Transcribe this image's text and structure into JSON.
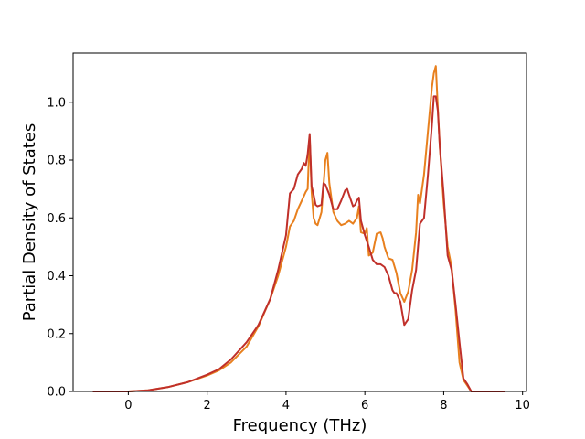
{
  "chart_data": {
    "type": "line",
    "xlabel": "Frequency (THz)",
    "ylabel": "Partial Density of States",
    "xlim": [
      -1.4,
      10.1
    ],
    "ylim": [
      0.0,
      1.17
    ],
    "xticks": [
      0,
      2,
      4,
      6,
      8,
      10
    ],
    "yticks": [
      0.0,
      0.2,
      0.4,
      0.6,
      0.8,
      1.0
    ],
    "grid": false,
    "legend": "none",
    "series": [
      {
        "color": "#e8801e",
        "x": [
          -0.9,
          0,
          0.5,
          1,
          1.5,
          2,
          2.3,
          2.6,
          3,
          3.3,
          3.6,
          3.8,
          4.0,
          4.1,
          4.2,
          4.3,
          4.4,
          4.5,
          4.55,
          4.6,
          4.65,
          4.7,
          4.75,
          4.8,
          4.9,
          5.0,
          5.05,
          5.1,
          5.2,
          5.3,
          5.4,
          5.5,
          5.6,
          5.7,
          5.8,
          5.85,
          5.9,
          6.0,
          6.05,
          6.1,
          6.2,
          6.3,
          6.4,
          6.45,
          6.5,
          6.6,
          6.7,
          6.8,
          6.9,
          7.0,
          7.1,
          7.2,
          7.3,
          7.35,
          7.4,
          7.45,
          7.5,
          7.6,
          7.7,
          7.75,
          7.8,
          7.85,
          7.9,
          8.0,
          8.1,
          8.2,
          8.3,
          8.4,
          8.5,
          8.6,
          8.7,
          9.0,
          9.55
        ],
        "y": [
          0.0,
          0.0,
          0.004,
          0.015,
          0.032,
          0.055,
          0.073,
          0.1,
          0.155,
          0.225,
          0.32,
          0.4,
          0.5,
          0.57,
          0.59,
          0.63,
          0.66,
          0.69,
          0.7,
          0.88,
          0.69,
          0.6,
          0.58,
          0.575,
          0.62,
          0.8,
          0.825,
          0.72,
          0.62,
          0.59,
          0.575,
          0.58,
          0.59,
          0.58,
          0.6,
          0.64,
          0.55,
          0.545,
          0.565,
          0.47,
          0.48,
          0.545,
          0.55,
          0.53,
          0.5,
          0.46,
          0.455,
          0.41,
          0.34,
          0.31,
          0.345,
          0.42,
          0.55,
          0.68,
          0.65,
          0.7,
          0.75,
          0.9,
          1.05,
          1.1,
          1.125,
          0.98,
          0.85,
          0.65,
          0.5,
          0.43,
          0.28,
          0.1,
          0.04,
          0.02,
          0.0,
          0.0,
          0.0
        ]
      },
      {
        "color": "#c0302a",
        "x": [
          -0.9,
          0,
          0.5,
          1,
          1.5,
          2,
          2.3,
          2.6,
          3,
          3.3,
          3.6,
          3.8,
          4.0,
          4.1,
          4.2,
          4.3,
          4.4,
          4.45,
          4.5,
          4.55,
          4.6,
          4.65,
          4.7,
          4.75,
          4.8,
          4.9,
          4.95,
          5.0,
          5.1,
          5.2,
          5.3,
          5.4,
          5.5,
          5.55,
          5.6,
          5.7,
          5.75,
          5.8,
          5.85,
          5.9,
          6.0,
          6.1,
          6.2,
          6.3,
          6.4,
          6.5,
          6.6,
          6.7,
          6.75,
          6.8,
          6.9,
          7.0,
          7.1,
          7.2,
          7.3,
          7.4,
          7.5,
          7.6,
          7.7,
          7.75,
          7.8,
          7.85,
          7.9,
          8.0,
          8.1,
          8.2,
          8.3,
          8.4,
          8.5,
          8.6,
          8.7,
          9.0,
          9.55
        ],
        "y": [
          0.0,
          0.0,
          0.004,
          0.015,
          0.032,
          0.058,
          0.077,
          0.11,
          0.17,
          0.23,
          0.32,
          0.42,
          0.54,
          0.685,
          0.7,
          0.75,
          0.77,
          0.79,
          0.78,
          0.82,
          0.89,
          0.71,
          0.68,
          0.645,
          0.64,
          0.645,
          0.72,
          0.715,
          0.68,
          0.63,
          0.63,
          0.66,
          0.695,
          0.7,
          0.68,
          0.64,
          0.645,
          0.66,
          0.67,
          0.59,
          0.54,
          0.5,
          0.455,
          0.44,
          0.44,
          0.43,
          0.4,
          0.35,
          0.34,
          0.34,
          0.31,
          0.23,
          0.25,
          0.35,
          0.42,
          0.58,
          0.6,
          0.75,
          0.92,
          1.02,
          1.02,
          0.97,
          0.85,
          0.68,
          0.47,
          0.42,
          0.3,
          0.17,
          0.045,
          0.025,
          0.0,
          0.0,
          0.0
        ]
      }
    ]
  }
}
